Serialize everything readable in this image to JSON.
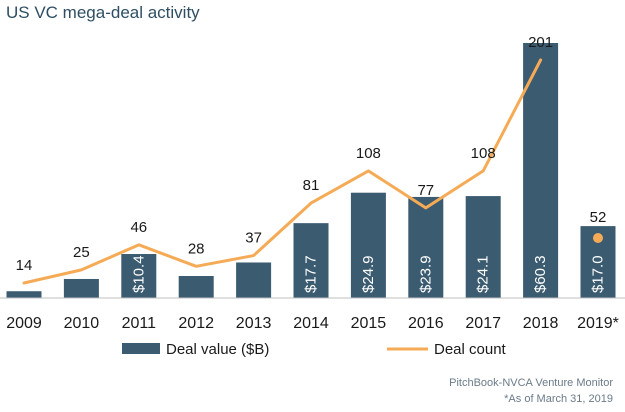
{
  "chart_data": {
    "type": "bar",
    "title": "US VC mega-deal activity",
    "categories": [
      "2009",
      "2010",
      "2011",
      "2012",
      "2013",
      "2014",
      "2015",
      "2016",
      "2017",
      "2018",
      "2019*"
    ],
    "series": [
      {
        "name": "Deal value ($B)",
        "type": "bar",
        "values": [
          1.6,
          4.5,
          10.4,
          5.2,
          8.4,
          17.7,
          24.9,
          23.9,
          24.1,
          60.3,
          17.0
        ],
        "labels": [
          "",
          "",
          "$10.4",
          "",
          "",
          "$17.7",
          "$24.9",
          "$23.9",
          "$24.1",
          "$60.3",
          "$17.0"
        ]
      },
      {
        "name": "Deal count",
        "type": "line",
        "values": [
          14,
          25,
          46,
          28,
          37,
          81,
          108,
          77,
          108,
          201,
          52
        ],
        "labels": [
          "14",
          "25",
          "46",
          "28",
          "37",
          "81",
          "108",
          "77",
          "108",
          "201",
          "52"
        ],
        "last_point_separate_marker": true
      }
    ],
    "bar_color": "#3b5b70",
    "line_color": "#f5ab56",
    "text_color": "#1a1a1a",
    "grid": false,
    "legend_position": "bottom"
  },
  "source": {
    "line1": "PitchBook-NVCA Venture Monitor",
    "line2": "*As of March 31, 2019"
  }
}
